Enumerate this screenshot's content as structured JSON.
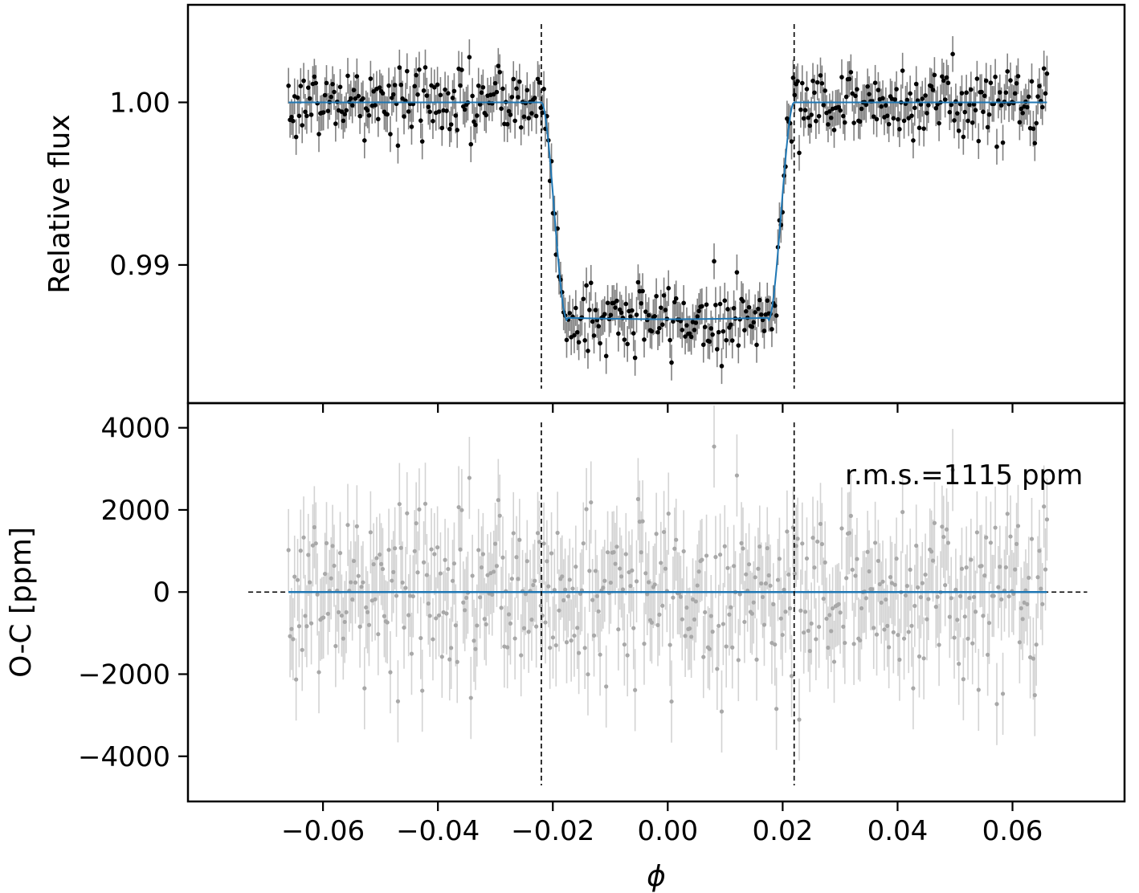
{
  "chart_data": [
    {
      "type": "scatter",
      "panel": "top",
      "title": "",
      "xlabel": "",
      "ylabel": "Relative flux",
      "xlim": [
        -0.0835,
        0.0795
      ],
      "ylim": [
        0.9815,
        1.006
      ],
      "yticks": [
        0.99,
        1.0
      ],
      "ytick_labels": [
        "0.99",
        "1.00"
      ],
      "transit_markers_x": [
        -0.022,
        0.022
      ],
      "grid": false,
      "legend": "none",
      "model": {
        "depth": 0.01375,
        "t14": 0.022,
        "t23": 0.0175,
        "x_range": [
          -0.066,
          0.066
        ],
        "color": "#1f77b4"
      },
      "noise_sigma": 0.0011,
      "error_bar": 0.0011,
      "n_points": 500,
      "x_range": [
        -0.066,
        0.066
      ],
      "colors": {
        "points": "#000000",
        "errorbars": "#808080"
      }
    },
    {
      "type": "scatter",
      "panel": "bottom",
      "title": "",
      "xlabel": "ϕ",
      "ylabel": "O-C [ppm]",
      "xlim": [
        -0.0835,
        0.0795
      ],
      "ylim": [
        -5100,
        4600
      ],
      "yticks": [
        -4000,
        -2000,
        0,
        2000,
        4000
      ],
      "ytick_labels": [
        "−4000",
        "−2000",
        "0",
        "2000",
        "4000"
      ],
      "xticks": [
        -0.06,
        -0.04,
        -0.02,
        0.0,
        0.02,
        0.04,
        0.06
      ],
      "xtick_labels": [
        "−0.06",
        "−0.04",
        "−0.02",
        "0.00",
        "0.02",
        "0.04",
        "0.06"
      ],
      "transit_markers_x": [
        -0.022,
        0.022
      ],
      "zero_line_x_range": [
        -0.073,
        0.073
      ],
      "annotation": "r.m.s.=1115 ppm",
      "rms_ppm": 1115,
      "error_bar_ppm": 1000,
      "grid": false,
      "legend": "none",
      "colors": {
        "points": "#a8a8a8",
        "errorbars": "#d3d3d3",
        "model": "#1f77b4"
      }
    }
  ]
}
